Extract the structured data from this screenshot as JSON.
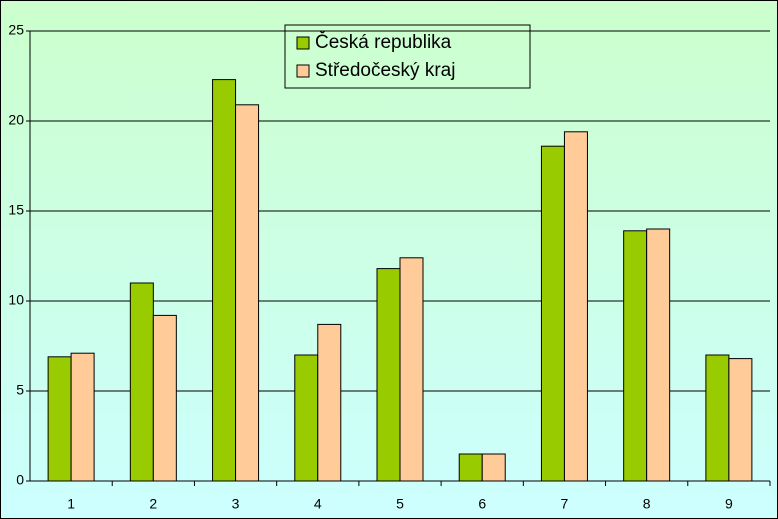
{
  "chart_data": {
    "type": "bar",
    "categories": [
      "1",
      "2",
      "3",
      "4",
      "5",
      "6",
      "7",
      "8",
      "9"
    ],
    "series": [
      {
        "name": "Česká republika",
        "color": "#99cc00",
        "values": [
          6.9,
          11.0,
          22.3,
          7.0,
          11.8,
          1.5,
          18.6,
          13.9,
          7.0
        ]
      },
      {
        "name": "Středočeský kraj",
        "color": "#ffcc99",
        "values": [
          7.1,
          9.2,
          20.9,
          8.7,
          12.4,
          1.5,
          19.4,
          14.0,
          6.8
        ]
      }
    ],
    "ylim": [
      0,
      25
    ],
    "yticks": [
      0,
      5,
      10,
      15,
      20,
      25
    ],
    "grid": true,
    "legend": "top"
  }
}
